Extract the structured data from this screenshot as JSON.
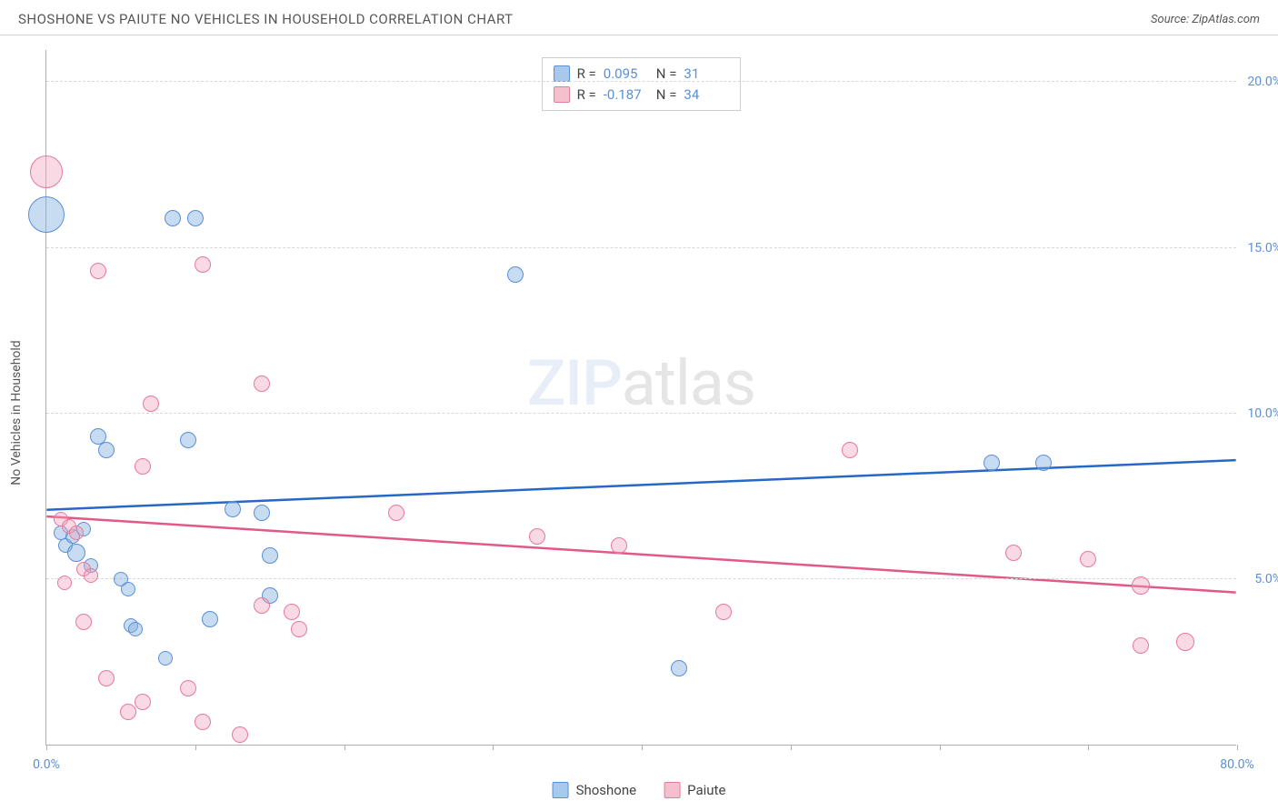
{
  "header": {
    "title": "SHOSHONE VS PAIUTE NO VEHICLES IN HOUSEHOLD CORRELATION CHART",
    "source": "Source: ZipAtlas.com"
  },
  "chart": {
    "type": "scatter",
    "y_axis_title": "No Vehicles in Household",
    "xlim": [
      0,
      80
    ],
    "ylim": [
      0,
      21
    ],
    "x_ticks_minor": [
      0,
      10,
      20,
      30,
      40,
      50,
      60,
      70,
      80
    ],
    "x_tick_labels": [
      {
        "x": 0,
        "label": "0.0%"
      },
      {
        "x": 80,
        "label": "80.0%"
      }
    ],
    "y_gridlines": [
      5,
      10,
      15,
      20
    ],
    "y_tick_labels": [
      {
        "y": 5,
        "label": "5.0%"
      },
      {
        "y": 10,
        "label": "10.0%"
      },
      {
        "y": 15,
        "label": "15.0%"
      },
      {
        "y": 20,
        "label": "20.0%"
      }
    ],
    "background_color": "#ffffff",
    "grid_color": "#d8d8d8",
    "axis_color": "#b0b0b0",
    "tick_label_color": "#5b8fd6",
    "watermark": {
      "prefix": "ZIP",
      "suffix": "atlas"
    },
    "stat_legend": {
      "series1": {
        "r_label": "R =",
        "r_value": "0.095",
        "n_label": "N =",
        "n_value": "31"
      },
      "series2": {
        "r_label": "R =",
        "r_value": "-0.187",
        "n_label": "N =",
        "n_value": "34"
      }
    },
    "bottom_legend": {
      "series1": "Shoshone",
      "series2": "Paiute"
    },
    "series": [
      {
        "name": "Shoshone",
        "color_fill": "rgba(130,175,225,0.45)",
        "color_stroke": "#5b8fd6",
        "trend_color": "#2668c9",
        "trend": {
          "x1": 0,
          "y1": 7.1,
          "x2": 80,
          "y2": 8.6
        },
        "points": [
          {
            "x": 0.0,
            "y": 16.0,
            "r": 20
          },
          {
            "x": 8.5,
            "y": 15.9,
            "r": 9
          },
          {
            "x": 10.0,
            "y": 15.9,
            "r": 9
          },
          {
            "x": 31.5,
            "y": 14.2,
            "r": 9
          },
          {
            "x": 3.5,
            "y": 9.3,
            "r": 9
          },
          {
            "x": 4.0,
            "y": 8.9,
            "r": 9
          },
          {
            "x": 9.5,
            "y": 9.2,
            "r": 9
          },
          {
            "x": 1.0,
            "y": 6.4,
            "r": 8
          },
          {
            "x": 1.3,
            "y": 6.0,
            "r": 8
          },
          {
            "x": 1.8,
            "y": 6.3,
            "r": 8
          },
          {
            "x": 2.0,
            "y": 5.8,
            "r": 10
          },
          {
            "x": 2.5,
            "y": 6.5,
            "r": 8
          },
          {
            "x": 3.0,
            "y": 5.4,
            "r": 8
          },
          {
            "x": 5.0,
            "y": 5.0,
            "r": 8
          },
          {
            "x": 5.5,
            "y": 4.7,
            "r": 8
          },
          {
            "x": 5.7,
            "y": 3.6,
            "r": 8
          },
          {
            "x": 6.0,
            "y": 3.5,
            "r": 8
          },
          {
            "x": 8.0,
            "y": 2.6,
            "r": 8
          },
          {
            "x": 11.0,
            "y": 3.8,
            "r": 9
          },
          {
            "x": 12.5,
            "y": 7.1,
            "r": 9
          },
          {
            "x": 14.5,
            "y": 7.0,
            "r": 9
          },
          {
            "x": 15.0,
            "y": 5.7,
            "r": 9
          },
          {
            "x": 15.0,
            "y": 4.5,
            "r": 9
          },
          {
            "x": 42.5,
            "y": 2.3,
            "r": 9
          },
          {
            "x": 63.5,
            "y": 8.5,
            "r": 9
          },
          {
            "x": 67.0,
            "y": 8.5,
            "r": 9
          }
        ]
      },
      {
        "name": "Paiute",
        "color_fill": "rgba(240,160,185,0.40)",
        "color_stroke": "#e67a9b",
        "trend_color": "#e05a85",
        "trend": {
          "x1": 0,
          "y1": 6.9,
          "x2": 80,
          "y2": 4.6
        },
        "points": [
          {
            "x": 0.0,
            "y": 17.3,
            "r": 18
          },
          {
            "x": 3.5,
            "y": 14.3,
            "r": 9
          },
          {
            "x": 10.5,
            "y": 14.5,
            "r": 9
          },
          {
            "x": 7.0,
            "y": 10.3,
            "r": 9
          },
          {
            "x": 14.5,
            "y": 10.9,
            "r": 9
          },
          {
            "x": 6.5,
            "y": 8.4,
            "r": 9
          },
          {
            "x": 1.0,
            "y": 6.8,
            "r": 8
          },
          {
            "x": 1.5,
            "y": 6.6,
            "r": 8
          },
          {
            "x": 2.0,
            "y": 6.4,
            "r": 8
          },
          {
            "x": 2.5,
            "y": 5.3,
            "r": 8
          },
          {
            "x": 3.0,
            "y": 5.1,
            "r": 8
          },
          {
            "x": 1.2,
            "y": 4.9,
            "r": 8
          },
          {
            "x": 2.5,
            "y": 3.7,
            "r": 9
          },
          {
            "x": 4.0,
            "y": 2.0,
            "r": 9
          },
          {
            "x": 5.5,
            "y": 1.0,
            "r": 9
          },
          {
            "x": 6.5,
            "y": 1.3,
            "r": 9
          },
          {
            "x": 9.5,
            "y": 1.7,
            "r": 9
          },
          {
            "x": 10.5,
            "y": 0.7,
            "r": 9
          },
          {
            "x": 13.0,
            "y": 0.3,
            "r": 9
          },
          {
            "x": 14.5,
            "y": 4.2,
            "r": 9
          },
          {
            "x": 16.5,
            "y": 4.0,
            "r": 9
          },
          {
            "x": 17.0,
            "y": 3.5,
            "r": 9
          },
          {
            "x": 23.5,
            "y": 7.0,
            "r": 9
          },
          {
            "x": 33.0,
            "y": 6.3,
            "r": 9
          },
          {
            "x": 38.5,
            "y": 6.0,
            "r": 9
          },
          {
            "x": 45.5,
            "y": 4.0,
            "r": 9
          },
          {
            "x": 54.0,
            "y": 8.9,
            "r": 9
          },
          {
            "x": 65.0,
            "y": 5.8,
            "r": 9
          },
          {
            "x": 70.0,
            "y": 5.6,
            "r": 9
          },
          {
            "x": 73.5,
            "y": 4.8,
            "r": 10
          },
          {
            "x": 73.5,
            "y": 3.0,
            "r": 9
          },
          {
            "x": 76.5,
            "y": 3.1,
            "r": 10
          }
        ]
      }
    ]
  }
}
